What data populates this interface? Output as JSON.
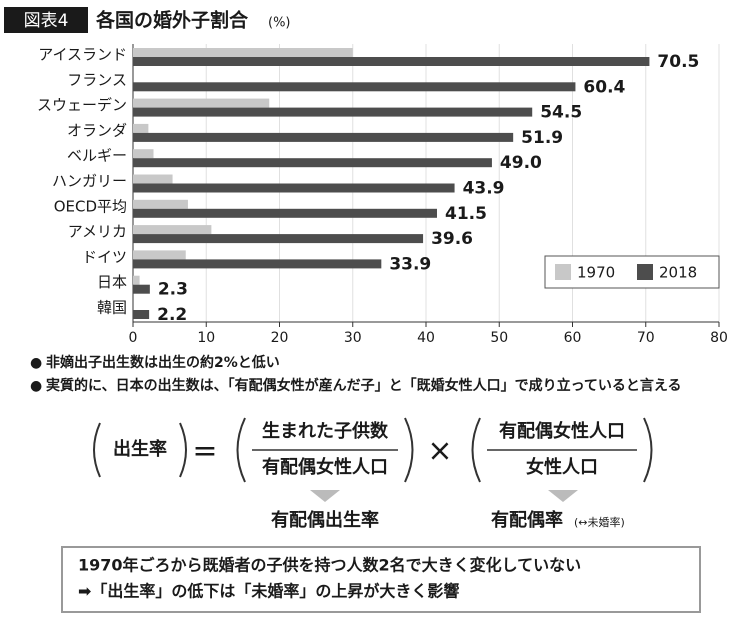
{
  "header": {
    "badge": "図表4",
    "title": "各国の婚外子割合",
    "unit": "(%)"
  },
  "chart_data": {
    "type": "bar",
    "orientation": "horizontal",
    "categories": [
      "アイスランド",
      "フランス",
      "スウェーデン",
      "オランダ",
      "ベルギー",
      "ハンガリー",
      "OECD平均",
      "アメリカ",
      "ドイツ",
      "日本",
      "韓国"
    ],
    "series": [
      {
        "name": "1970",
        "color": "#c8c8c8",
        "values": [
          30,
          null,
          18.6,
          2.1,
          2.8,
          5.4,
          7.5,
          10.7,
          7.2,
          0.9,
          null
        ]
      },
      {
        "name": "2018",
        "color": "#4d4d4d",
        "values": [
          70.5,
          60.4,
          54.5,
          51.9,
          49.0,
          43.9,
          41.5,
          39.6,
          33.9,
          2.3,
          2.2
        ],
        "value_labels": [
          "70.5",
          "60.4",
          "54.5",
          "51.9",
          "49.0",
          "43.9",
          "41.5",
          "39.6",
          "33.9",
          "2.3",
          "2.2"
        ]
      }
    ],
    "xlim": [
      0,
      80
    ],
    "xticks": [
      0,
      10,
      20,
      30,
      40,
      50,
      60,
      70,
      80
    ],
    "grid": true,
    "legend": "lower right"
  },
  "notes": [
    "非嫡出子出生数は出生の約2%と低い",
    "実質的に、日本の出生数は、「有配偶女性が産んだ子」と「既婚女性人口」で成り立っていると言える"
  ],
  "formula": {
    "lhs": "出生率",
    "equals": "=",
    "fraction1": {
      "numerator": "生まれた子供数",
      "denominator": "有配偶女性人口"
    },
    "times": "×",
    "fraction2": {
      "numerator": "有配偶女性人口",
      "denominator": "女性人口"
    },
    "labels": [
      {
        "text": "有配偶出生率"
      },
      {
        "text": "有配偶率",
        "note": "(↔未婚率)"
      }
    ]
  },
  "summary": [
    "1970年ごろから既婚者の子供を持つ人数2名で大きく変化していない",
    "➡「出生率」の低下は「未婚率」の上昇が大きく影響"
  ]
}
